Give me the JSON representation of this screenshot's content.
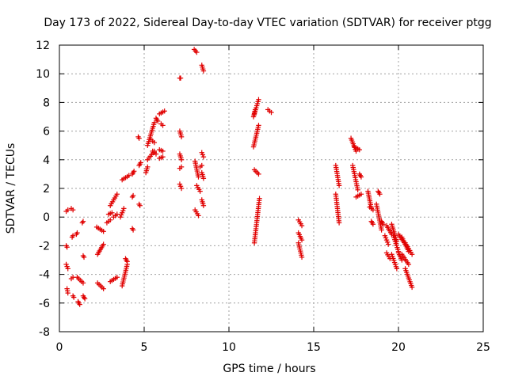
{
  "chart_data": {
    "type": "scatter",
    "title": "Day 173 of 2022, Sidereal Day-to-day VTEC variation (SDTVAR) for receiver ptgg",
    "xlabel": "GPS time / hours",
    "ylabel": "SDTVAR / TECUs",
    "xlim": [
      0,
      25
    ],
    "ylim": [
      -8,
      12
    ],
    "xticks": [
      0,
      5,
      10,
      15,
      20,
      25
    ],
    "yticks": [
      -8,
      -6,
      -4,
      -2,
      0,
      2,
      4,
      6,
      8,
      10,
      12
    ],
    "grid": true,
    "marker": "plus",
    "color": "#e00000",
    "segments": [
      {
        "x0": 0.4,
        "x1": 0.45,
        "y0": -2.0,
        "y1": -2.1
      },
      {
        "x0": 0.4,
        "x1": 0.5,
        "y0": 0.4,
        "y1": 0.5
      },
      {
        "x0": 0.4,
        "x1": 0.5,
        "y0": -3.3,
        "y1": -3.6
      },
      {
        "x0": 0.45,
        "x1": 0.5,
        "y0": -5.0,
        "y1": -5.3
      },
      {
        "x0": 0.7,
        "x1": 0.8,
        "y0": 0.6,
        "y1": 0.5
      },
      {
        "x0": 0.7,
        "x1": 0.8,
        "y0": -4.3,
        "y1": -4.2
      },
      {
        "x0": 0.75,
        "x1": 0.8,
        "y0": -1.4,
        "y1": -1.3
      },
      {
        "x0": 0.8,
        "x1": 0.85,
        "y0": -5.5,
        "y1": -5.6
      },
      {
        "x0": 1.0,
        "x1": 1.05,
        "y0": -1.2,
        "y1": -1.1
      },
      {
        "x0": 1.05,
        "x1": 1.4,
        "y0": -4.2,
        "y1": -4.6
      },
      {
        "x0": 1.1,
        "x1": 1.2,
        "y0": -5.9,
        "y1": -6.1
      },
      {
        "x0": 1.35,
        "x1": 1.4,
        "y0": -0.4,
        "y1": -0.3
      },
      {
        "x0": 1.4,
        "x1": 1.45,
        "y0": -2.7,
        "y1": -2.8
      },
      {
        "x0": 1.4,
        "x1": 1.5,
        "y0": -5.5,
        "y1": -5.7
      },
      {
        "x0": 2.2,
        "x1": 2.6,
        "y0": -0.7,
        "y1": -1.0
      },
      {
        "x0": 2.25,
        "x1": 2.6,
        "y0": -2.6,
        "y1": -1.9
      },
      {
        "x0": 2.25,
        "x1": 2.6,
        "y0": -4.6,
        "y1": -5.0
      },
      {
        "x0": 2.8,
        "x1": 3.0,
        "y0": -0.4,
        "y1": -0.2
      },
      {
        "x0": 2.9,
        "x1": 3.1,
        "y0": 0.2,
        "y1": 0.3
      },
      {
        "x0": 3.0,
        "x1": 3.4,
        "y0": 0.8,
        "y1": 1.6
      },
      {
        "x0": 3.0,
        "x1": 3.4,
        "y0": -4.5,
        "y1": -4.2
      },
      {
        "x0": 3.2,
        "x1": 3.4,
        "y0": 0.0,
        "y1": 0.2
      },
      {
        "x0": 3.6,
        "x1": 3.8,
        "y0": 0.0,
        "y1": 0.6
      },
      {
        "x0": 3.7,
        "x1": 4.1,
        "y0": 2.6,
        "y1": 2.9
      },
      {
        "x0": 3.7,
        "x1": 4.0,
        "y0": -4.8,
        "y1": -3.3
      },
      {
        "x0": 3.9,
        "x1": 4.0,
        "y0": -2.9,
        "y1": -3.1
      },
      {
        "x0": 4.3,
        "x1": 4.4,
        "y0": 3.0,
        "y1": 3.2
      },
      {
        "x0": 4.3,
        "x1": 4.35,
        "y0": 1.4,
        "y1": 1.5
      },
      {
        "x0": 4.3,
        "x1": 4.35,
        "y0": -0.8,
        "y1": -0.9
      },
      {
        "x0": 4.7,
        "x1": 4.8,
        "y0": 3.6,
        "y1": 3.8
      },
      {
        "x0": 4.7,
        "x1": 4.75,
        "y0": 0.9,
        "y1": 0.8
      },
      {
        "x0": 4.65,
        "x1": 4.7,
        "y0": 5.6,
        "y1": 5.5
      },
      {
        "x0": 5.1,
        "x1": 5.2,
        "y0": 3.1,
        "y1": 3.5
      },
      {
        "x0": 5.2,
        "x1": 5.6,
        "y0": 5.0,
        "y1": 6.6
      },
      {
        "x0": 5.2,
        "x1": 5.6,
        "y0": 4.0,
        "y1": 4.6
      },
      {
        "x0": 5.4,
        "x1": 5.6,
        "y0": 5.4,
        "y1": 5.2
      },
      {
        "x0": 5.5,
        "x1": 5.7,
        "y0": 4.6,
        "y1": 4.4
      },
      {
        "x0": 5.7,
        "x1": 5.8,
        "y0": 6.9,
        "y1": 6.7
      },
      {
        "x0": 5.9,
        "x1": 6.2,
        "y0": 7.2,
        "y1": 7.4
      },
      {
        "x0": 6.0,
        "x1": 6.1,
        "y0": 6.5,
        "y1": 6.4
      },
      {
        "x0": 5.9,
        "x1": 6.1,
        "y0": 4.7,
        "y1": 4.6
      },
      {
        "x0": 5.9,
        "x1": 6.1,
        "y0": 4.1,
        "y1": 4.2
      },
      {
        "x0": 7.1,
        "x1": 7.15,
        "y0": 9.7,
        "y1": 9.7
      },
      {
        "x0": 7.1,
        "x1": 7.2,
        "y0": 6.0,
        "y1": 5.6
      },
      {
        "x0": 7.1,
        "x1": 7.2,
        "y0": 4.4,
        "y1": 4.0
      },
      {
        "x0": 7.1,
        "x1": 7.2,
        "y0": 2.3,
        "y1": 2.0
      },
      {
        "x0": 7.1,
        "x1": 7.2,
        "y0": 3.4,
        "y1": 3.5
      },
      {
        "x0": 7.95,
        "x1": 8.1,
        "y0": 11.7,
        "y1": 11.5
      },
      {
        "x0": 8.0,
        "x1": 8.2,
        "y0": 3.9,
        "y1": 2.8
      },
      {
        "x0": 8.0,
        "x1": 8.2,
        "y0": 0.5,
        "y1": 0.1
      },
      {
        "x0": 8.1,
        "x1": 8.3,
        "y0": 2.2,
        "y1": 1.8
      },
      {
        "x0": 8.4,
        "x1": 8.5,
        "y0": 10.6,
        "y1": 10.2
      },
      {
        "x0": 8.4,
        "x1": 8.5,
        "y0": 4.5,
        "y1": 4.2
      },
      {
        "x0": 8.4,
        "x1": 8.5,
        "y0": 3.1,
        "y1": 2.7
      },
      {
        "x0": 8.4,
        "x1": 8.5,
        "y0": 1.2,
        "y1": 0.8
      },
      {
        "x0": 8.3,
        "x1": 8.4,
        "y0": 3.5,
        "y1": 3.6
      },
      {
        "x0": 11.45,
        "x1": 11.55,
        "y0": 7.0,
        "y1": 7.5
      },
      {
        "x0": 11.5,
        "x1": 11.75,
        "y0": 7.2,
        "y1": 8.2
      },
      {
        "x0": 11.45,
        "x1": 11.75,
        "y0": 4.9,
        "y1": 6.4
      },
      {
        "x0": 11.5,
        "x1": 11.75,
        "y0": 3.3,
        "y1": 3.0
      },
      {
        "x0": 11.5,
        "x1": 11.8,
        "y0": -1.8,
        "y1": 1.3
      },
      {
        "x0": 12.3,
        "x1": 12.5,
        "y0": 7.5,
        "y1": 7.3
      },
      {
        "x0": 14.1,
        "x1": 14.3,
        "y0": -0.2,
        "y1": -0.6
      },
      {
        "x0": 14.1,
        "x1": 14.3,
        "y0": -1.1,
        "y1": -1.6
      },
      {
        "x0": 14.1,
        "x1": 14.3,
        "y0": -1.8,
        "y1": -2.8
      },
      {
        "x0": 16.3,
        "x1": 16.5,
        "y0": 3.6,
        "y1": 2.2
      },
      {
        "x0": 16.3,
        "x1": 16.5,
        "y0": 1.6,
        "y1": -0.4
      },
      {
        "x0": 17.2,
        "x1": 17.5,
        "y0": 5.5,
        "y1": 4.6
      },
      {
        "x0": 17.3,
        "x1": 17.6,
        "y0": 3.6,
        "y1": 1.9
      },
      {
        "x0": 17.4,
        "x1": 17.7,
        "y0": 4.9,
        "y1": 4.7
      },
      {
        "x0": 17.5,
        "x1": 17.8,
        "y0": 1.4,
        "y1": 1.6
      },
      {
        "x0": 17.7,
        "x1": 17.8,
        "y0": 3.0,
        "y1": 2.8
      },
      {
        "x0": 18.2,
        "x1": 18.4,
        "y0": 1.8,
        "y1": 0.6
      },
      {
        "x0": 18.3,
        "x1": 18.5,
        "y0": 0.7,
        "y1": 0.5
      },
      {
        "x0": 18.4,
        "x1": 18.5,
        "y0": -0.3,
        "y1": -0.5
      },
      {
        "x0": 18.7,
        "x1": 19.0,
        "y0": 0.9,
        "y1": -0.9
      },
      {
        "x0": 18.8,
        "x1": 18.9,
        "y0": 1.8,
        "y1": 1.6
      },
      {
        "x0": 19.0,
        "x1": 19.1,
        "y0": -0.3,
        "y1": -0.5
      },
      {
        "x0": 19.3,
        "x1": 19.6,
        "y0": -0.6,
        "y1": -1.2
      },
      {
        "x0": 19.2,
        "x1": 19.4,
        "y0": -1.3,
        "y1": -1.9
      },
      {
        "x0": 19.3,
        "x1": 19.5,
        "y0": -2.5,
        "y1": -2.9
      },
      {
        "x0": 19.6,
        "x1": 19.9,
        "y0": -0.5,
        "y1": -1.7
      },
      {
        "x0": 19.6,
        "x1": 19.9,
        "y0": -2.6,
        "y1": -3.6
      },
      {
        "x0": 19.7,
        "x1": 20.0,
        "y0": -1.3,
        "y1": -2.4
      },
      {
        "x0": 20.0,
        "x1": 20.2,
        "y0": -2.5,
        "y1": -3.0
      },
      {
        "x0": 20.0,
        "x1": 20.4,
        "y0": -1.2,
        "y1": -1.9
      },
      {
        "x0": 20.2,
        "x1": 20.6,
        "y0": -1.4,
        "y1": -2.4
      },
      {
        "x0": 20.2,
        "x1": 20.6,
        "y0": -2.6,
        "y1": -3.3
      },
      {
        "x0": 20.4,
        "x1": 20.8,
        "y0": -1.8,
        "y1": -2.6
      },
      {
        "x0": 20.4,
        "x1": 20.8,
        "y0": -3.6,
        "y1": -4.9
      }
    ]
  }
}
